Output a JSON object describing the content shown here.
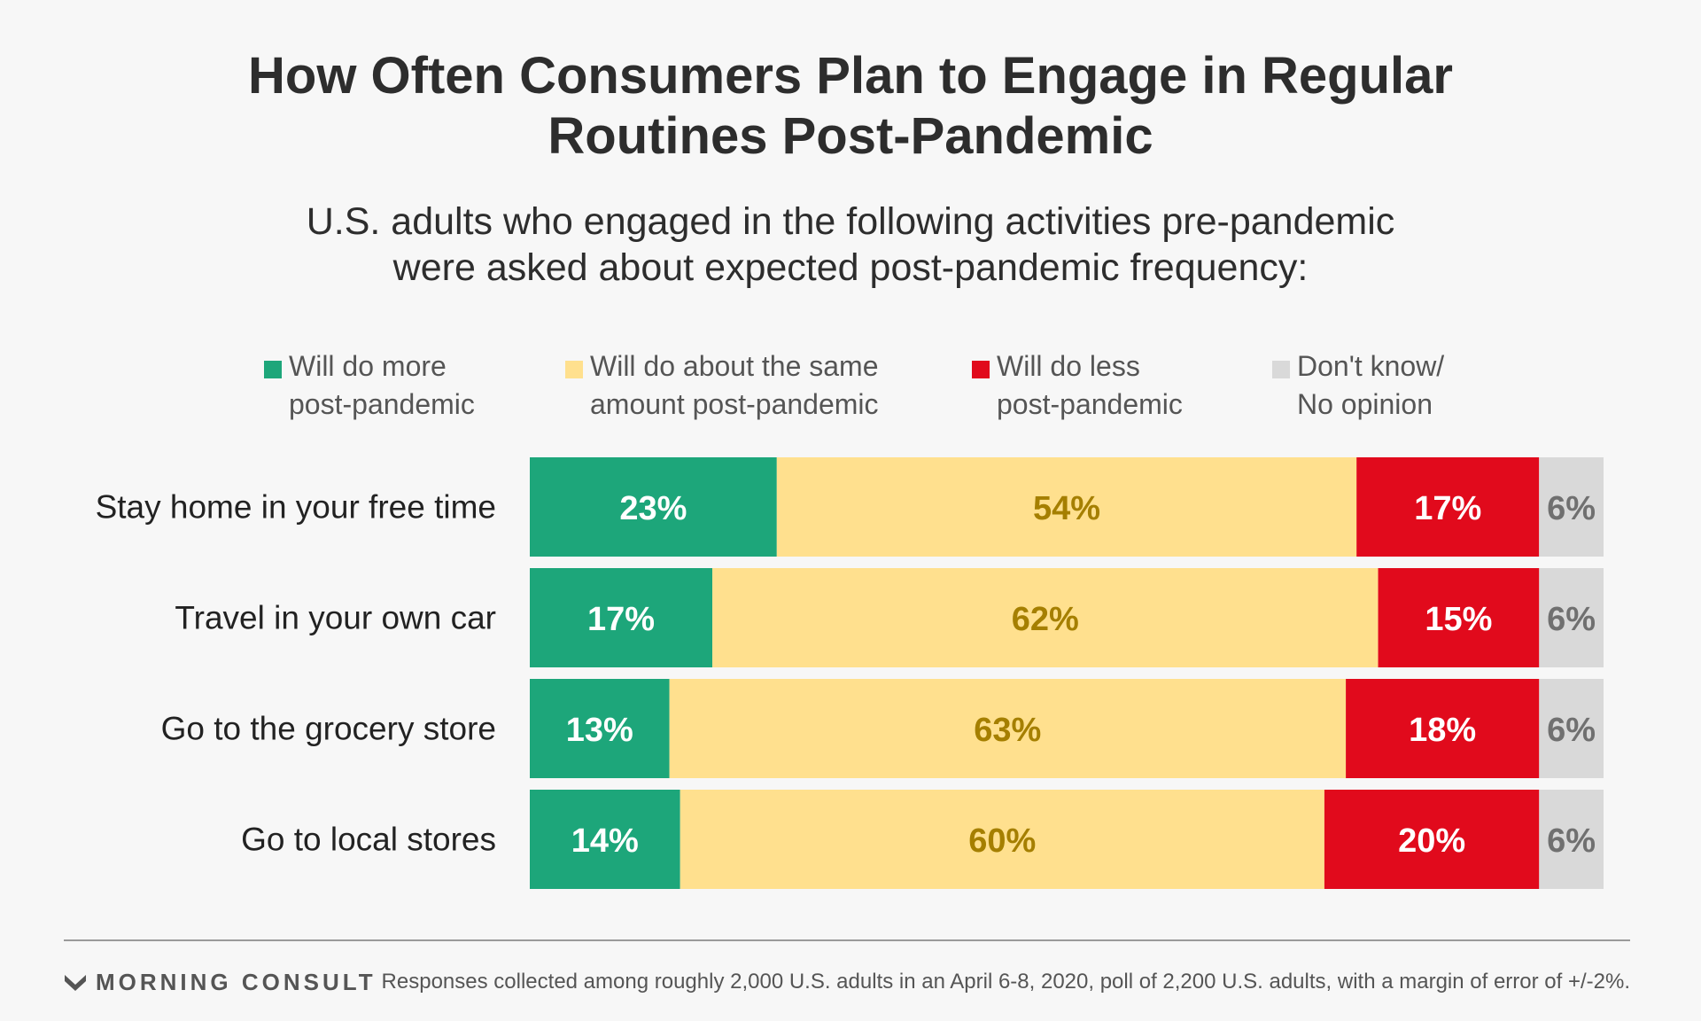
{
  "title_lines": [
    "How Often Consumers Plan to Engage in Regular",
    "Routines Post-Pandemic"
  ],
  "subtitle_lines": [
    "U.S. adults who engaged in the following activities pre-pandemic",
    "were asked about expected post-pandemic frequency:"
  ],
  "legend": [
    {
      "lines": [
        "Will do more",
        "post-pandemic"
      ],
      "color": "#1da67a"
    },
    {
      "lines": [
        "Will do about the same",
        "amount post-pandemic"
      ],
      "color": "#ffe08e"
    },
    {
      "lines": [
        "Will do less",
        "post-pandemic"
      ],
      "color": "#e10a1c"
    },
    {
      "lines": [
        "Don't know/",
        "No opinion"
      ],
      "color": "#d9d9d9"
    }
  ],
  "chart_data": {
    "type": "bar",
    "orientation": "horizontal",
    "stacked": true,
    "categories": [
      "Stay home in your free time",
      "Travel in your own car",
      "Go to the grocery store",
      "Go to local stores"
    ],
    "series": [
      {
        "name": "Will do more post-pandemic",
        "values": [
          23,
          17,
          13,
          14
        ],
        "color": "#1da67a",
        "label_color": "#ffffff"
      },
      {
        "name": "Will do about the same amount post-pandemic",
        "values": [
          54,
          62,
          63,
          60
        ],
        "color": "#ffe08e",
        "label_color": "#a57f00"
      },
      {
        "name": "Will do less post-pandemic",
        "values": [
          17,
          15,
          18,
          20
        ],
        "color": "#e10a1c",
        "label_color": "#ffffff"
      },
      {
        "name": "Don't know/No opinion",
        "values": [
          6,
          6,
          6,
          6
        ],
        "color": "#d9d9d9",
        "label_color": "#707070"
      }
    ],
    "value_suffix": "%",
    "xlim": [
      0,
      100
    ]
  },
  "footer": {
    "brand": "MORNING CONSULT",
    "note": "Responses collected among roughly 2,000 U.S. adults in an April 6-8, 2020, poll of 2,200 U.S. adults, with a margin of error of +/-2%."
  }
}
